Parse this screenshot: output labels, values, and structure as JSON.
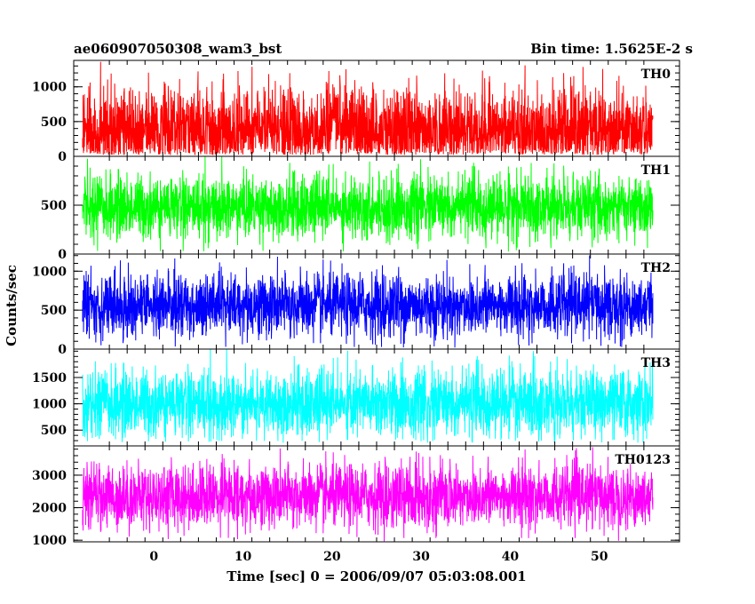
{
  "chart_data": {
    "type": "line",
    "title": "ae060907050308_wam3_bst",
    "bin_time_label": "Bin time: 1.5625E-2 s",
    "xlabel": "Time [sec] 0 = 2006/09/07 05:03:08.001",
    "ylabel": "Counts/sec",
    "xlim": [
      -9,
      59
    ],
    "x_data_range": [
      -8,
      56
    ],
    "x_ticks": [
      0,
      10,
      20,
      30,
      40,
      50
    ],
    "x_tick_labels": [
      "0",
      "10",
      "20",
      "30",
      "40",
      "50"
    ],
    "grid": false,
    "series": [
      {
        "name": "TH0",
        "color": "#ff0000",
        "ylim": [
          0,
          1380
        ],
        "y_ticks": [
          0,
          500,
          1000
        ],
        "y_tick_labels": [
          "0",
          "500",
          "1000"
        ],
        "mean": 370,
        "min": 20,
        "max": 1380
      },
      {
        "name": "TH1",
        "color": "#00ff00",
        "ylim": [
          0,
          1000
        ],
        "y_ticks": [
          0,
          500
        ],
        "y_tick_labels": [
          "0",
          "500"
        ],
        "mean": 480,
        "min": 20,
        "max": 1000
      },
      {
        "name": "TH2",
        "color": "#0000ff",
        "ylim": [
          0,
          1220
        ],
        "y_ticks": [
          0,
          500,
          1000
        ],
        "y_tick_labels": [
          "0",
          "500",
          "1000"
        ],
        "mean": 560,
        "min": 20,
        "max": 1220
      },
      {
        "name": "TH3",
        "color": "#00ffff",
        "ylim": [
          200,
          2040
        ],
        "y_ticks": [
          500,
          1000,
          1500
        ],
        "y_tick_labels": [
          "500",
          "1000",
          "1500"
        ],
        "mean": 1000,
        "min": 260,
        "max": 2040
      },
      {
        "name": "TH0123",
        "color": "#ff00ff",
        "ylim": [
          950,
          3900
        ],
        "y_ticks": [
          1000,
          2000,
          3000
        ],
        "y_tick_labels": [
          "1000",
          "2000",
          "3000"
        ],
        "mean": 2350,
        "min": 950,
        "max": 3900
      }
    ]
  }
}
